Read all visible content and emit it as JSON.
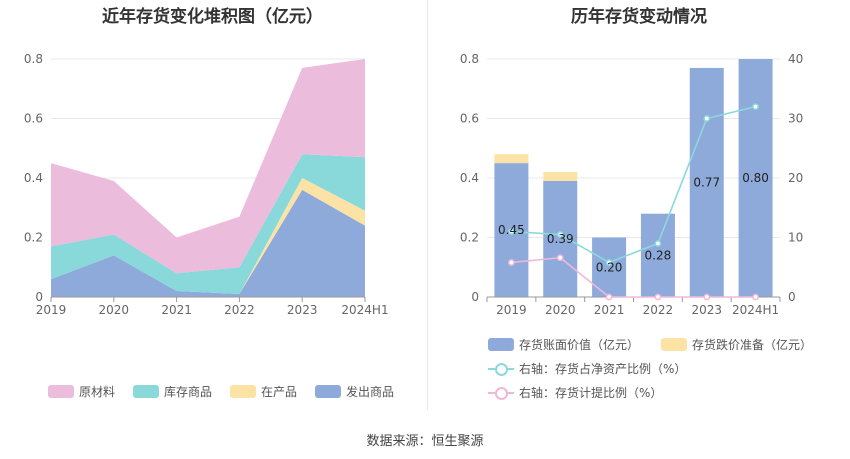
{
  "source_text": "数据来源：恒生聚源",
  "chart_data": [
    {
      "type": "area",
      "title": "近年存货变化堆积图（亿元）",
      "categories": [
        "2019",
        "2020",
        "2021",
        "2022",
        "2023",
        "2024H1"
      ],
      "ylim": [
        0,
        0.8
      ],
      "yticks": [
        "0",
        "0.2",
        "0.4",
        "0.6",
        "0.8"
      ],
      "stacked": true,
      "grid": true,
      "legend_position": "bottom",
      "series": [
        {
          "name": "发出商品",
          "color": "#8eaadb",
          "values": [
            0.06,
            0.14,
            0.02,
            0.01,
            0.36,
            0.24
          ]
        },
        {
          "name": "在产品",
          "color": "#fde2a5",
          "values": [
            0.0,
            0.0,
            0.0,
            0.0,
            0.04,
            0.05
          ]
        },
        {
          "name": "库存商品",
          "color": "#89d9db",
          "values": [
            0.11,
            0.07,
            0.06,
            0.09,
            0.08,
            0.18
          ]
        },
        {
          "name": "原材料",
          "color": "#ecbcdc",
          "values": [
            0.28,
            0.18,
            0.12,
            0.17,
            0.29,
            0.33
          ]
        }
      ],
      "legend_order": [
        "原材料",
        "库存商品",
        "在产品",
        "发出商品"
      ]
    },
    {
      "type": "bar",
      "title": "历年存货变动情况",
      "categories": [
        "2019",
        "2020",
        "2021",
        "2022",
        "2023",
        "2024H1"
      ],
      "ylim": [
        0,
        0.8
      ],
      "yticks": [
        "0",
        "0.2",
        "0.4",
        "0.6",
        "0.8"
      ],
      "y2lim": [
        0,
        40
      ],
      "y2ticks": [
        "0",
        "10",
        "20",
        "30",
        "40"
      ],
      "grid": true,
      "legend_position": "bottom",
      "bars": [
        {
          "name": "存货账面价值（亿元）",
          "color": "#8eaadb",
          "values": [
            0.45,
            0.39,
            0.2,
            0.28,
            0.77,
            0.8
          ],
          "labels": [
            "0.45",
            "0.39",
            "0.20",
            "0.28",
            "0.77",
            "0.80"
          ]
        },
        {
          "name": "存货跌价准备（亿元）",
          "color": "#fde2a5",
          "values": [
            0.03,
            0.03,
            0.0,
            0.0,
            0.0,
            0.0
          ]
        }
      ],
      "lines": [
        {
          "name": "右轴：存货占净资产比例（%）",
          "color": "#8cd8dc",
          "axis": "right",
          "values": [
            11.0,
            10.5,
            5.8,
            9.0,
            30.0,
            32.0
          ]
        },
        {
          "name": "右轴：存货计提比例（%）",
          "color": "#f0b8d8",
          "axis": "right",
          "values": [
            5.8,
            6.6,
            0.0,
            0.0,
            0.0,
            0.0
          ]
        }
      ]
    }
  ]
}
